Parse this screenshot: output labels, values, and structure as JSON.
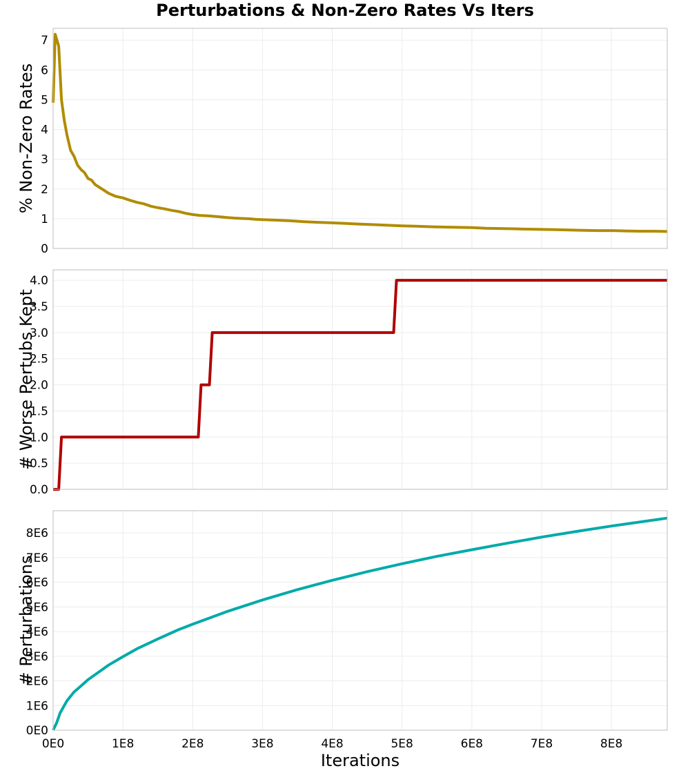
{
  "figure": {
    "title": "Perturbations & Non-Zero Rates Vs Iters",
    "xlabel": "Iterations"
  },
  "chart_data": [
    {
      "type": "line",
      "title": "Perturbations & Non-Zero Rates Vs Iters",
      "ylabel": "% Non-Zero Rates",
      "xlim": [
        0,
        880000000
      ],
      "ylim": [
        0,
        7.4
      ],
      "grid": true,
      "x_ticks": [
        0,
        100000000,
        200000000,
        300000000,
        400000000,
        500000000,
        600000000,
        700000000,
        800000000
      ],
      "y_ticks": [
        0,
        1,
        2,
        3,
        4,
        5,
        6,
        7
      ],
      "y_tick_labels": [
        "0",
        "1",
        "2",
        "3",
        "4",
        "5",
        "6",
        "7"
      ],
      "series": [
        {
          "color": "#b08c00",
          "x": [
            0,
            3000000,
            8000000,
            12000000,
            16000000,
            20000000,
            25000000,
            30000000,
            35000000,
            40000000,
            45000000,
            50000000,
            55000000,
            60000000,
            70000000,
            80000000,
            90000000,
            100000000,
            110000000,
            120000000,
            130000000,
            140000000,
            150000000,
            160000000,
            170000000,
            180000000,
            190000000,
            200000000,
            210000000,
            220000000,
            230000000,
            240000000,
            250000000,
            260000000,
            270000000,
            280000000,
            290000000,
            300000000,
            320000000,
            340000000,
            360000000,
            380000000,
            400000000,
            420000000,
            440000000,
            460000000,
            480000000,
            500000000,
            520000000,
            540000000,
            560000000,
            580000000,
            600000000,
            620000000,
            640000000,
            660000000,
            680000000,
            700000000,
            720000000,
            740000000,
            760000000,
            780000000,
            800000000,
            820000000,
            840000000,
            860000000,
            880000000
          ],
          "values": [
            4.9,
            7.2,
            6.8,
            5.0,
            4.3,
            3.8,
            3.3,
            3.1,
            2.8,
            2.65,
            2.55,
            2.35,
            2.3,
            2.15,
            2.0,
            1.85,
            1.75,
            1.7,
            1.62,
            1.55,
            1.5,
            1.42,
            1.37,
            1.33,
            1.28,
            1.24,
            1.18,
            1.14,
            1.11,
            1.1,
            1.08,
            1.06,
            1.04,
            1.02,
            1.01,
            1.0,
            0.98,
            0.97,
            0.95,
            0.93,
            0.9,
            0.88,
            0.86,
            0.84,
            0.82,
            0.8,
            0.78,
            0.76,
            0.75,
            0.73,
            0.72,
            0.71,
            0.7,
            0.68,
            0.67,
            0.66,
            0.65,
            0.64,
            0.63,
            0.62,
            0.61,
            0.6,
            0.6,
            0.59,
            0.58,
            0.58,
            0.57
          ]
        }
      ]
    },
    {
      "type": "line",
      "ylabel": "# Worse Pertubs Kept",
      "xlim": [
        0,
        880000000
      ],
      "ylim": [
        0,
        4.2
      ],
      "grid": true,
      "x_ticks": [
        0,
        100000000,
        200000000,
        300000000,
        400000000,
        500000000,
        600000000,
        700000000,
        800000000
      ],
      "y_ticks": [
        0,
        0.5,
        1,
        1.5,
        2,
        2.5,
        3,
        3.5,
        4
      ],
      "y_tick_labels": [
        "0.0",
        "0.5",
        "1.0",
        "1.5",
        "2.0",
        "2.5",
        "3.0",
        "3.5",
        "4.0"
      ],
      "series": [
        {
          "color": "#b00000",
          "x": [
            0,
            8000000,
            12000000,
            208000000,
            212000000,
            224000000,
            228000000,
            488000000,
            492000000,
            880000000
          ],
          "values": [
            0,
            0,
            1,
            1,
            2,
            2,
            3,
            3,
            4,
            4
          ]
        }
      ]
    },
    {
      "type": "line",
      "ylabel": "# Perturbations",
      "xlabel": "Iterations",
      "xlim": [
        0,
        880000000
      ],
      "ylim": [
        0,
        8900000
      ],
      "grid": true,
      "x_ticks": [
        0,
        100000000,
        200000000,
        300000000,
        400000000,
        500000000,
        600000000,
        700000000,
        800000000
      ],
      "x_tick_labels": [
        "0E0",
        "1E8",
        "2E8",
        "3E8",
        "4E8",
        "5E8",
        "6E8",
        "7E8",
        "8E8"
      ],
      "y_ticks": [
        0,
        1000000,
        2000000,
        3000000,
        4000000,
        5000000,
        6000000,
        7000000,
        8000000
      ],
      "y_tick_labels": [
        "0E0",
        "1E6",
        "2E6",
        "3E6",
        "4E6",
        "5E6",
        "6E6",
        "7E6",
        "8E6"
      ],
      "series": [
        {
          "color": "#00aaaa",
          "x": [
            0,
            5000000,
            10000000,
            20000000,
            30000000,
            40000000,
            50000000,
            60000000,
            80000000,
            100000000,
            120000000,
            150000000,
            180000000,
            200000000,
            250000000,
            300000000,
            350000000,
            400000000,
            450000000,
            500000000,
            550000000,
            600000000,
            650000000,
            700000000,
            750000000,
            800000000,
            850000000,
            880000000
          ],
          "values": [
            0,
            300000,
            700000,
            1200000,
            1550000,
            1800000,
            2050000,
            2250000,
            2650000,
            2980000,
            3300000,
            3700000,
            4080000,
            4300000,
            4820000,
            5280000,
            5700000,
            6080000,
            6430000,
            6750000,
            7050000,
            7320000,
            7580000,
            7830000,
            8060000,
            8280000,
            8480000,
            8600000
          ]
        }
      ]
    }
  ]
}
